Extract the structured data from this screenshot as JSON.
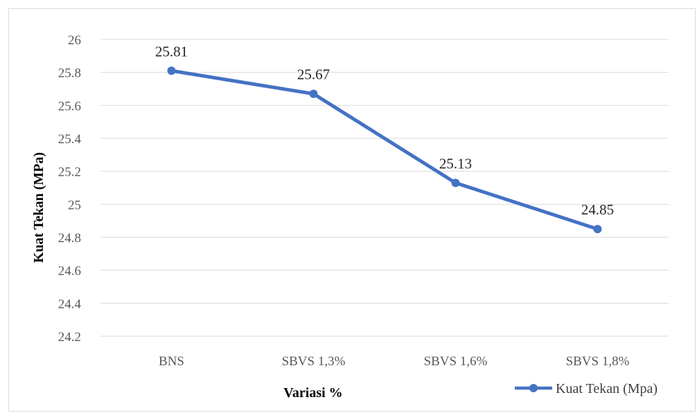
{
  "chart_data": {
    "type": "line",
    "categories": [
      "BNS",
      "SBVS 1,3%",
      "SBVS 1,6%",
      "SBVS 1,8%"
    ],
    "series": [
      {
        "name": "Kuat Tekan (Mpa)",
        "values": [
          25.81,
          25.67,
          25.13,
          24.85
        ],
        "color": "#4472c4"
      }
    ],
    "data_labels": [
      "25.81",
      "25.67",
      "25.13",
      "24.85"
    ],
    "y_ticks": [
      "24.2",
      "24.4",
      "24.6",
      "24.8",
      "25",
      "25.2",
      "25.4",
      "25.6",
      "25.8",
      "26"
    ],
    "ylim": [
      24.2,
      26
    ],
    "xlabel": "Variasi %",
    "ylabel": "Kuat Tekan (MPa)",
    "grid": true,
    "legend_position": "bottom-right",
    "gridline_color": "#d9d9d9"
  }
}
